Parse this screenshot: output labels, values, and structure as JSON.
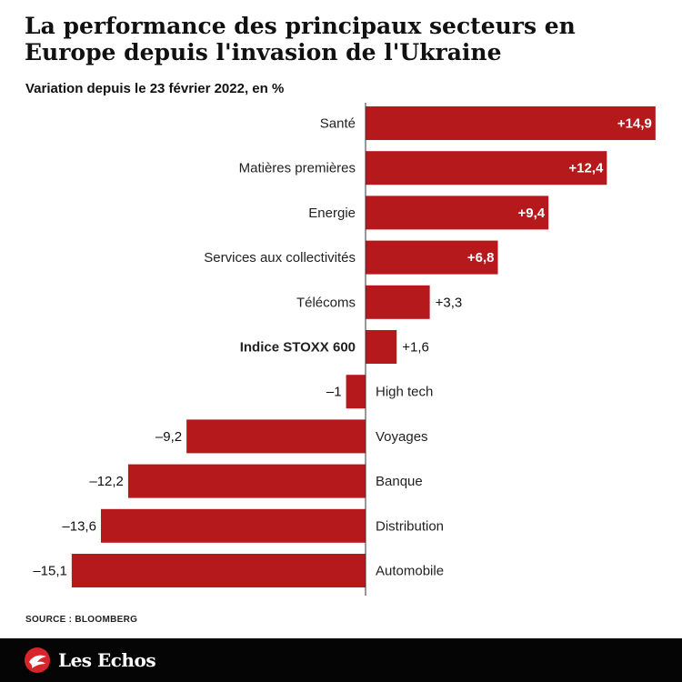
{
  "header": {
    "title": "La performance des principaux secteurs en Europe depuis l'invasion de l'Ukraine",
    "subtitle": "Variation depuis le 23 février 2022, en %"
  },
  "chart_data": {
    "type": "bar",
    "orientation": "horizontal",
    "title": "La performance des principaux secteurs en Europe depuis l'invasion de l'Ukraine",
    "subtitle": "Variation depuis le 23 février 2022, en %",
    "categories": [
      "Santé",
      "Matières premières",
      "Energie",
      "Services aux collectivités",
      "Télécoms",
      "Indice STOXX 600",
      "High tech",
      "Voyages",
      "Banque",
      "Distribution",
      "Automobile"
    ],
    "values": [
      14.9,
      12.4,
      9.4,
      6.8,
      3.3,
      1.6,
      -1,
      -9.2,
      -12.2,
      -13.6,
      -15.1
    ],
    "value_labels": [
      "+14,9",
      "+12,4",
      "+9,4",
      "+6,8",
      "+3,3",
      "+1,6",
      "–1",
      "–9,2",
      "–12,2",
      "–13,6",
      "–15,1"
    ],
    "highlight": [
      "Indice STOXX 600"
    ],
    "bar_color": "#b5191c",
    "grid": false,
    "xlim": [
      -15.1,
      14.9
    ]
  },
  "footer": {
    "source": "SOURCE : BLOOMBERG",
    "brand": "Les Echos",
    "brand_icon": "les-echos-bird-icon"
  }
}
